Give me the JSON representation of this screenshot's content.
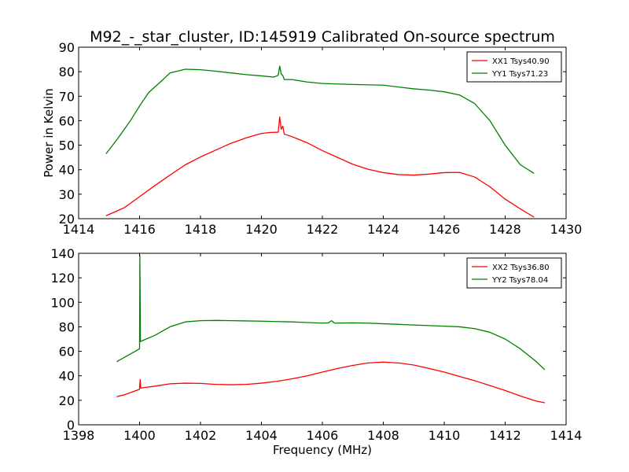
{
  "chart_data": [
    {
      "type": "line",
      "title": "M92_-_star_cluster, ID:145919 Calibrated On-source spectrum",
      "xlabel": "",
      "ylabel": "Power in Kelvin",
      "xlim": [
        1414,
        1430
      ],
      "ylim": [
        20,
        90
      ],
      "xticks": [
        1414,
        1416,
        1418,
        1420,
        1422,
        1424,
        1426,
        1428,
        1430
      ],
      "yticks": [
        20,
        30,
        40,
        50,
        60,
        70,
        80,
        90
      ],
      "legend_position": "top-right",
      "grid": false,
      "series": [
        {
          "name": "XX1 Tsys40.90",
          "color": "#ff0000",
          "points": [
            [
              1414.9,
              21.2
            ],
            [
              1415.5,
              24.5
            ],
            [
              1416.0,
              29.0
            ],
            [
              1416.5,
              33.5
            ],
            [
              1417.0,
              37.8
            ],
            [
              1417.5,
              42.0
            ],
            [
              1418.0,
              45.2
            ],
            [
              1418.5,
              48.0
            ],
            [
              1419.0,
              50.8
            ],
            [
              1419.5,
              53.0
            ],
            [
              1420.0,
              54.8
            ],
            [
              1420.3,
              55.2
            ],
            [
              1420.55,
              55.3
            ],
            [
              1420.6,
              61.5
            ],
            [
              1420.65,
              56.5
            ],
            [
              1420.7,
              57.8
            ],
            [
              1420.75,
              54.5
            ],
            [
              1421.0,
              53.5
            ],
            [
              1421.5,
              51.0
            ],
            [
              1422.0,
              47.8
            ],
            [
              1422.5,
              45.0
            ],
            [
              1423.0,
              42.2
            ],
            [
              1423.5,
              40.2
            ],
            [
              1424.0,
              38.8
            ],
            [
              1424.5,
              38.0
            ],
            [
              1425.0,
              37.8
            ],
            [
              1425.5,
              38.2
            ],
            [
              1426.0,
              38.8
            ],
            [
              1426.5,
              38.9
            ],
            [
              1427.0,
              37.0
            ],
            [
              1427.5,
              33.0
            ],
            [
              1428.0,
              28.0
            ],
            [
              1428.5,
              24.0
            ],
            [
              1428.95,
              20.6
            ]
          ]
        },
        {
          "name": "YY1 Tsys71.23",
          "color": "#008000",
          "points": [
            [
              1414.9,
              46.5
            ],
            [
              1415.3,
              53.0
            ],
            [
              1415.7,
              60.0
            ],
            [
              1416.0,
              66.0
            ],
            [
              1416.3,
              71.5
            ],
            [
              1416.7,
              76.0
            ],
            [
              1417.0,
              79.5
            ],
            [
              1417.5,
              81.0
            ],
            [
              1418.0,
              80.8
            ],
            [
              1418.5,
              80.2
            ],
            [
              1419.0,
              79.5
            ],
            [
              1419.5,
              78.8
            ],
            [
              1420.0,
              78.3
            ],
            [
              1420.4,
              77.8
            ],
            [
              1420.55,
              78.5
            ],
            [
              1420.6,
              82.3
            ],
            [
              1420.65,
              79.0
            ],
            [
              1420.7,
              78.5
            ],
            [
              1420.75,
              76.8
            ],
            [
              1421.0,
              76.8
            ],
            [
              1421.5,
              75.8
            ],
            [
              1422.0,
              75.2
            ],
            [
              1423.0,
              74.8
            ],
            [
              1424.0,
              74.5
            ],
            [
              1425.0,
              73.0
            ],
            [
              1425.5,
              72.5
            ],
            [
              1426.0,
              71.8
            ],
            [
              1426.5,
              70.5
            ],
            [
              1427.0,
              67.0
            ],
            [
              1427.5,
              60.0
            ],
            [
              1428.0,
              50.0
            ],
            [
              1428.5,
              42.0
            ],
            [
              1428.95,
              38.5
            ]
          ]
        }
      ]
    },
    {
      "type": "line",
      "title": "",
      "xlabel": "Frequency (MHz)",
      "ylabel": "",
      "xlim": [
        1398,
        1414
      ],
      "ylim": [
        0,
        140
      ],
      "xticks": [
        1398,
        1400,
        1402,
        1404,
        1406,
        1408,
        1410,
        1412,
        1414
      ],
      "yticks": [
        0,
        20,
        40,
        60,
        80,
        100,
        120,
        140
      ],
      "legend_position": "top-right",
      "grid": false,
      "series": [
        {
          "name": "XX2 Tsys36.80",
          "color": "#ff0000",
          "points": [
            [
              1399.25,
              23.0
            ],
            [
              1399.5,
              24.5
            ],
            [
              1400.0,
              29.0
            ],
            [
              1400.02,
              37.0
            ],
            [
              1400.04,
              30.0
            ],
            [
              1400.5,
              31.5
            ],
            [
              1401.0,
              33.5
            ],
            [
              1401.5,
              34.0
            ],
            [
              1402.0,
              33.8
            ],
            [
              1402.5,
              33.0
            ],
            [
              1403.0,
              32.7
            ],
            [
              1403.5,
              33.0
            ],
            [
              1404.0,
              34.0
            ],
            [
              1404.5,
              35.5
            ],
            [
              1405.0,
              37.5
            ],
            [
              1405.5,
              40.0
            ],
            [
              1406.0,
              43.0
            ],
            [
              1406.5,
              46.0
            ],
            [
              1407.0,
              48.5
            ],
            [
              1407.5,
              50.5
            ],
            [
              1408.0,
              51.2
            ],
            [
              1408.5,
              50.5
            ],
            [
              1409.0,
              48.8
            ],
            [
              1409.5,
              46.0
            ],
            [
              1410.0,
              43.0
            ],
            [
              1410.5,
              39.5
            ],
            [
              1411.0,
              36.0
            ],
            [
              1411.5,
              32.0
            ],
            [
              1412.0,
              28.0
            ],
            [
              1412.5,
              23.5
            ],
            [
              1413.0,
              19.5
            ],
            [
              1413.3,
              18.0
            ]
          ]
        },
        {
          "name": "YY2 Tsys78.04",
          "color": "#008000",
          "points": [
            [
              1399.25,
              51.5
            ],
            [
              1399.5,
              55.0
            ],
            [
              1400.0,
              62.0
            ],
            [
              1400.01,
              138.0
            ],
            [
              1400.03,
              68.0
            ],
            [
              1400.5,
              73.0
            ],
            [
              1401.0,
              80.0
            ],
            [
              1401.5,
              84.0
            ],
            [
              1402.0,
              85.0
            ],
            [
              1402.5,
              85.2
            ],
            [
              1403.0,
              85.0
            ],
            [
              1403.5,
              84.8
            ],
            [
              1404.0,
              84.6
            ],
            [
              1404.5,
              84.3
            ],
            [
              1405.0,
              84.0
            ],
            [
              1405.5,
              83.5
            ],
            [
              1406.0,
              83.0
            ],
            [
              1406.2,
              83.2
            ],
            [
              1406.3,
              85.0
            ],
            [
              1406.4,
              83.0
            ],
            [
              1407.0,
              83.2
            ],
            [
              1407.5,
              83.0
            ],
            [
              1408.0,
              82.5
            ],
            [
              1408.5,
              82.0
            ],
            [
              1409.0,
              81.5
            ],
            [
              1409.5,
              81.0
            ],
            [
              1410.0,
              80.5
            ],
            [
              1410.5,
              80.0
            ],
            [
              1411.0,
              78.5
            ],
            [
              1411.5,
              75.5
            ],
            [
              1412.0,
              70.0
            ],
            [
              1412.5,
              62.0
            ],
            [
              1413.0,
              52.0
            ],
            [
              1413.3,
              45.0
            ]
          ]
        }
      ]
    }
  ],
  "legend_colors": {
    "red": "#ff0000",
    "green": "#008000"
  }
}
